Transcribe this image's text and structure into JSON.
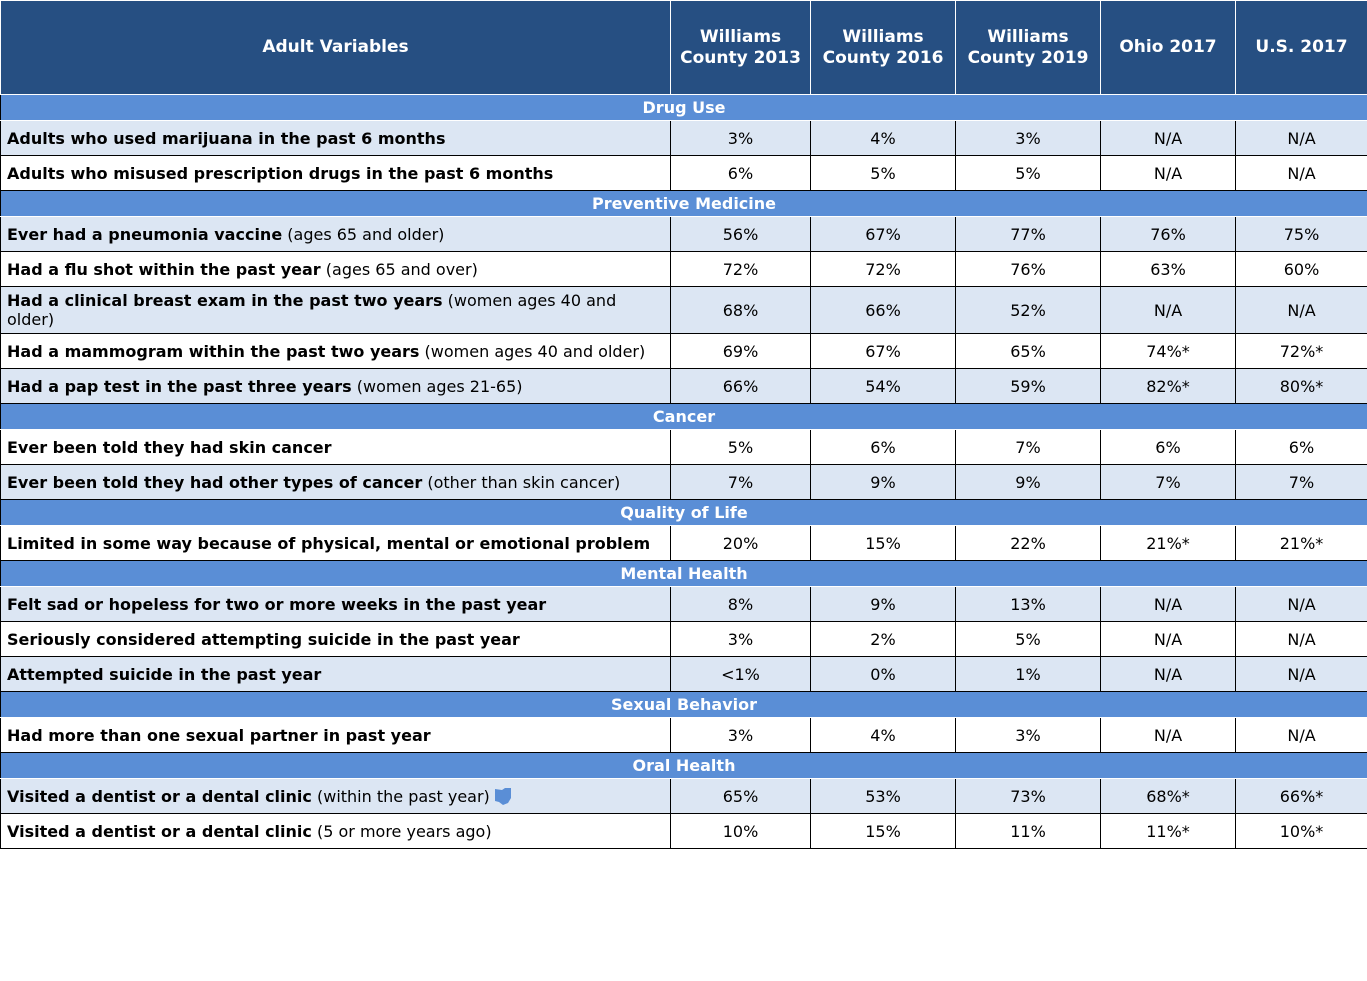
{
  "header": {
    "columns": [
      "Adult Variables",
      "Williams County 2013",
      "Williams County 2016",
      "Williams County 2019",
      "Ohio 2017",
      "U.S. 2017"
    ]
  },
  "sections": [
    {
      "title": "Drug Use",
      "rows": [
        {
          "label": "Adults who used marijuana in the past 6 months",
          "values": [
            "3%",
            "4%",
            "3%",
            "N/A",
            "N/A"
          ]
        },
        {
          "label": "Adults who misused prescription drugs in the past 6 months",
          "values": [
            "6%",
            "5%",
            "5%",
            "N/A",
            "N/A"
          ]
        }
      ]
    },
    {
      "title": "Preventive Medicine",
      "rows": [
        {
          "label": "Ever had a pneumonia vaccine",
          "note": "(ages 65 and older)",
          "values": [
            "56%",
            "67%",
            "77%",
            "76%",
            "75%"
          ]
        },
        {
          "label": "Had a flu shot within the past year",
          "note": "(ages 65 and over)",
          "values": [
            "72%",
            "72%",
            "76%",
            "63%",
            "60%"
          ]
        },
        {
          "label": "Had a clinical breast exam in the past two years",
          "note": "(women ages 40 and older)",
          "values": [
            "68%",
            "66%",
            "52%",
            "N/A",
            "N/A"
          ]
        },
        {
          "label": "Had a mammogram within the past two years",
          "note": "(women ages 40 and older)",
          "values": [
            "69%",
            "67%",
            "65%",
            "74%*",
            "72%*"
          ]
        },
        {
          "label": "Had a pap test in the past three years",
          "note": "(women ages 21-65)",
          "values": [
            "66%",
            "54%",
            "59%",
            "82%*",
            "80%*"
          ]
        }
      ]
    },
    {
      "title": "Cancer",
      "rows": [
        {
          "label": "Ever been told they had skin cancer",
          "values": [
            "5%",
            "6%",
            "7%",
            "6%",
            "6%"
          ]
        },
        {
          "label": "Ever been told they had other types of cancer",
          "note": "(other than skin cancer)",
          "values": [
            "7%",
            "9%",
            "9%",
            "7%",
            "7%"
          ]
        }
      ]
    },
    {
      "title": "Quality of Life",
      "rows": [
        {
          "label": "Limited in some way because of physical, mental or emotional problem",
          "values": [
            "20%",
            "15%",
            "22%",
            "21%*",
            "21%*"
          ]
        }
      ]
    },
    {
      "title": "Mental Health",
      "rows": [
        {
          "label": "Felt sad or hopeless for two or more weeks in the past year",
          "values": [
            "8%",
            "9%",
            "13%",
            "N/A",
            "N/A"
          ]
        },
        {
          "label": "Seriously considered attempting suicide in the past year",
          "values": [
            "3%",
            "2%",
            "5%",
            "N/A",
            "N/A"
          ]
        },
        {
          "label": "Attempted suicide in the past year",
          "values": [
            "<1%",
            "0%",
            "1%",
            "N/A",
            "N/A"
          ]
        }
      ]
    },
    {
      "title": "Sexual Behavior",
      "rows": [
        {
          "label": "Had more than one sexual partner in past year",
          "values": [
            "3%",
            "4%",
            "3%",
            "N/A",
            "N/A"
          ]
        }
      ]
    },
    {
      "title": "Oral Health",
      "rows": [
        {
          "label": "Visited a dentist or a dental clinic",
          "note": "(within the past year)",
          "values": [
            "65%",
            "53%",
            "73%",
            "68%*",
            "66%*"
          ]
        },
        {
          "label": "Visited a dentist or a dental clinic",
          "note": "(5 or more years ago)",
          "values": [
            "10%",
            "15%",
            "11%",
            "11%*",
            "10%*"
          ]
        }
      ]
    }
  ]
}
